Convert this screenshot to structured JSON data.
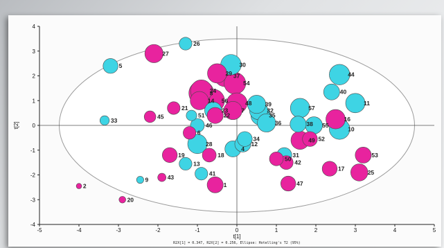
{
  "chart_data": {
    "type": "scatter",
    "title": "",
    "xlabel": "t[1]",
    "ylabel": "t[2]",
    "xlim": [
      -5,
      5
    ],
    "ylim": [
      -4,
      4
    ],
    "xticks": [
      -5,
      -4,
      -3,
      -2,
      -1,
      0,
      1,
      2,
      3,
      4,
      5
    ],
    "yticks": [
      -4,
      -3,
      -2,
      -1,
      0,
      1,
      2,
      3,
      4
    ],
    "footnote": "R2X[1] = 0.347, R2X[2] = 0.256, Ellipse: Hotelling's T2 (95%)",
    "ellipse": {
      "cx": 0,
      "cy": 0,
      "rx": 4.5,
      "ry": 3.5
    },
    "grid": false,
    "legend": "none",
    "colors": {
      "cyan": "#3ed4e4",
      "magenta": "#e8239e",
      "ellipse_stroke": "#9a9a9a",
      "axis": "#222222"
    },
    "points": [
      {
        "label": "1",
        "x": -0.55,
        "y": -2.4,
        "size": 0.6,
        "color": "magenta"
      },
      {
        "label": "2",
        "x": -4.0,
        "y": -2.45,
        "size": 0.12,
        "color": "magenta"
      },
      {
        "label": "4",
        "x": -0.1,
        "y": -0.95,
        "size": 0.6,
        "color": "cyan"
      },
      {
        "label": "5",
        "x": -3.2,
        "y": 2.4,
        "size": 0.55,
        "color": "cyan"
      },
      {
        "label": "6",
        "x": -1.2,
        "y": -0.3,
        "size": 0.45,
        "color": "magenta"
      },
      {
        "label": "7",
        "x": -0.1,
        "y": 0.6,
        "size": 0.7,
        "color": "magenta"
      },
      {
        "label": "8",
        "x": -0.9,
        "y": 1.3,
        "size": 1.0,
        "color": "magenta"
      },
      {
        "label": "9",
        "x": -2.45,
        "y": -2.2,
        "size": 0.2,
        "color": "cyan"
      },
      {
        "label": "10",
        "x": 2.6,
        "y": -0.15,
        "size": 0.8,
        "color": "cyan"
      },
      {
        "label": "11",
        "x": 3.0,
        "y": 0.9,
        "size": 0.75,
        "color": "cyan"
      },
      {
        "label": "12",
        "x": 0.15,
        "y": -0.75,
        "size": 0.6,
        "color": "cyan"
      },
      {
        "label": "13",
        "x": -1.3,
        "y": -1.55,
        "size": 0.45,
        "color": "cyan"
      },
      {
        "label": "14",
        "x": -0.95,
        "y": 1.0,
        "size": 0.7,
        "color": "magenta"
      },
      {
        "label": "16",
        "x": 2.5,
        "y": 0.25,
        "size": 0.75,
        "color": "magenta"
      },
      {
        "label": "17",
        "x": 2.35,
        "y": -1.75,
        "size": 0.55,
        "color": "magenta"
      },
      {
        "label": "18",
        "x": -0.7,
        "y": -1.2,
        "size": 0.5,
        "color": "magenta"
      },
      {
        "label": "19",
        "x": -1.7,
        "y": -1.2,
        "size": 0.55,
        "color": "magenta"
      },
      {
        "label": "20",
        "x": -2.9,
        "y": -3.0,
        "size": 0.18,
        "color": "magenta"
      },
      {
        "label": "21",
        "x": -1.6,
        "y": 0.7,
        "size": 0.45,
        "color": "magenta"
      },
      {
        "label": "22",
        "x": -0.55,
        "y": 0.4,
        "size": 0.6,
        "color": "magenta"
      },
      {
        "label": "23",
        "x": -0.6,
        "y": 0.6,
        "size": 0.65,
        "color": "cyan"
      },
      {
        "label": "24",
        "x": -0.9,
        "y": 1.4,
        "size": 0.85,
        "color": "magenta"
      },
      {
        "label": "25",
        "x": 3.1,
        "y": -1.9,
        "size": 0.65,
        "color": "magenta"
      },
      {
        "label": "26",
        "x": -1.3,
        "y": 3.3,
        "size": 0.45,
        "color": "cyan"
      },
      {
        "label": "27",
        "x": -2.1,
        "y": 2.9,
        "size": 0.7,
        "color": "magenta"
      },
      {
        "label": "28",
        "x": -1.0,
        "y": -0.75,
        "size": 0.75,
        "color": "cyan"
      },
      {
        "label": "29",
        "x": -0.5,
        "y": 2.1,
        "size": 0.75,
        "color": "magenta"
      },
      {
        "label": "30",
        "x": -0.15,
        "y": 2.45,
        "size": 0.8,
        "color": "cyan"
      },
      {
        "label": "31",
        "x": 1.2,
        "y": -1.2,
        "size": 0.55,
        "color": "cyan"
      },
      {
        "label": "32",
        "x": 0.55,
        "y": 0.6,
        "size": 0.7,
        "color": "cyan"
      },
      {
        "label": "33",
        "x": -3.35,
        "y": 0.2,
        "size": 0.3,
        "color": "cyan"
      },
      {
        "label": "34",
        "x": 0.2,
        "y": -0.55,
        "size": 0.55,
        "color": "cyan"
      },
      {
        "label": "35",
        "x": 0.6,
        "y": 0.4,
        "size": 0.75,
        "color": "cyan"
      },
      {
        "label": "36",
        "x": 0.75,
        "y": 0.1,
        "size": 0.7,
        "color": "cyan"
      },
      {
        "label": "37",
        "x": -0.3,
        "y": 2.0,
        "size": 0.85,
        "color": "magenta"
      },
      {
        "label": "38",
        "x": 1.55,
        "y": 0.05,
        "size": 0.6,
        "color": "cyan"
      },
      {
        "label": "39",
        "x": 0.5,
        "y": 0.85,
        "size": 0.7,
        "color": "cyan"
      },
      {
        "label": "40",
        "x": 2.4,
        "y": 1.35,
        "size": 0.6,
        "color": "cyan"
      },
      {
        "label": "41",
        "x": -0.9,
        "y": -1.95,
        "size": 0.45,
        "color": "cyan"
      },
      {
        "label": "42",
        "x": 1.25,
        "y": -1.5,
        "size": 0.5,
        "color": "magenta"
      },
      {
        "label": "43",
        "x": -1.9,
        "y": -2.1,
        "size": 0.25,
        "color": "magenta"
      },
      {
        "label": "44",
        "x": 2.6,
        "y": 2.05,
        "size": 0.8,
        "color": "cyan"
      },
      {
        "label": "45",
        "x": -2.2,
        "y": 0.35,
        "size": 0.4,
        "color": "magenta"
      },
      {
        "label": "46",
        "x": -1.0,
        "y": 0.0,
        "size": 0.5,
        "color": "cyan"
      },
      {
        "label": "47",
        "x": 1.3,
        "y": -2.35,
        "size": 0.55,
        "color": "magenta"
      },
      {
        "label": "48",
        "x": 0.0,
        "y": 0.9,
        "size": 0.8,
        "color": "magenta"
      },
      {
        "label": "49",
        "x": 1.6,
        "y": -0.6,
        "size": 0.7,
        "color": "magenta"
      },
      {
        "label": "50",
        "x": 1.0,
        "y": -1.35,
        "size": 0.5,
        "color": "magenta"
      },
      {
        "label": "51",
        "x": -1.15,
        "y": 0.4,
        "size": 0.35,
        "color": "cyan"
      },
      {
        "label": "52",
        "x": 1.85,
        "y": -0.55,
        "size": 0.55,
        "color": "magenta"
      },
      {
        "label": "53",
        "x": 3.2,
        "y": -1.2,
        "size": 0.6,
        "color": "magenta"
      },
      {
        "label": "54",
        "x": -0.05,
        "y": 1.7,
        "size": 0.85,
        "color": "magenta"
      },
      {
        "label": "55",
        "x": 1.95,
        "y": 0.0,
        "size": 0.65,
        "color": "cyan"
      },
      {
        "label": "56",
        "x": -0.6,
        "y": 1.0,
        "size": 0.9,
        "color": "magenta"
      },
      {
        "label": "57",
        "x": 1.6,
        "y": 0.7,
        "size": 0.75,
        "color": "cyan"
      }
    ]
  }
}
